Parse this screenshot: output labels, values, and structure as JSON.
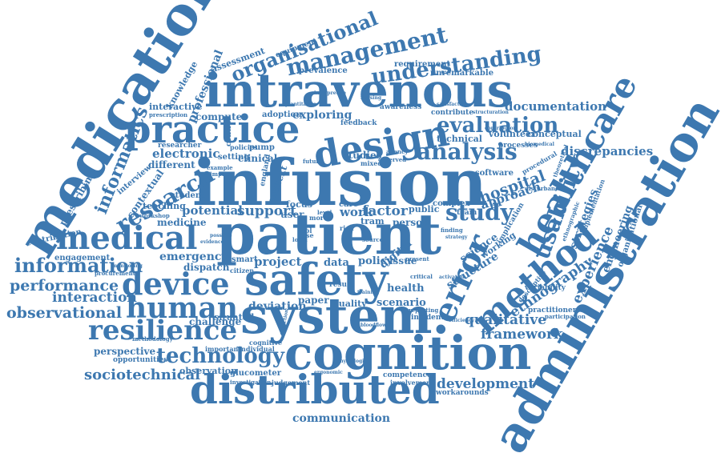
{
  "cloud": {
    "color": "#3d78b0",
    "words": {
      "medication": "medication",
      "intravenous": "intravenous",
      "infusion": "infusion",
      "patient": "patient",
      "safety": "safety",
      "system": "system.",
      "cognition": "cognition",
      "distributed": "distributed",
      "administration": "administration",
      "practice": "practice",
      "design": "design",
      "management": "management",
      "organisational": "organisational",
      "understanding": "understanding",
      "healthcare": "healthcare",
      "method": "method",
      "error": "error",
      "medical": "medical",
      "device": "device",
      "human": "human",
      "resilience": "resilience",
      "technology": "technology",
      "information": "information",
      "performance": "performance",
      "observational": "observational",
      "interaction": "interaction",
      "sociotechnical": "sociotechnical",
      "research": "research",
      "informatics": "informatics",
      "evaluation": "evaluation",
      "analysis": "analysis",
      "study": "study",
      "usability": "usability",
      "documentation": "documentation",
      "discrepancies": "discrepancies",
      "development": "development",
      "framework": "framework",
      "communication": "communication",
      "qualitative": "qualitative",
      "experience": "experience",
      "ethnography": "ethnography",
      "strategies": "strategies",
      "engineering": "engineering",
      "organizational": "organizational",
      "hospital": "hospital",
      "approach": "approach",
      "professional": "professional",
      "knowledge": "knowledge",
      "assessment": "assessment",
      "equipment": "equipment",
      "prevalence": "prevalence",
      "requirement": "requirement",
      "unremarkable": "unremarkable",
      "interactive": "interactive",
      "computer": "computer",
      "electronic": "electronic",
      "different": "different",
      "researcher": "researcher",
      "prescribing": "prescribing",
      "contextual": "contextual",
      "interview": "interview",
      "teaching": "teaching",
      "student": "student",
      "contribution": "contribution",
      "engagement": "engagement",
      "emergency": "emergency",
      "dispatch": "dispatch",
      "potential": "potential",
      "support": "support",
      "medicine": "medicine",
      "exploring": "exploring",
      "studies": "studies",
      "adoption": "adoption",
      "setting": "setting",
      "clinical": "clinical",
      "pump": "pump",
      "technical": "technical",
      "volunteer": "volunteer",
      "conceptual": "conceptual",
      "processes": "processes",
      "contribute": "contribute",
      "awareness": "awareness",
      "feedback": "feedback",
      "policies": "policies",
      "control": "control",
      "factor": "factor",
      "work": "work",
      "person": "person",
      "digital": "digital",
      "policy": "policy",
      "issue": "issue",
      "data": "data",
      "project": "project",
      "smart": "smart",
      "context": "context",
      "user": "user",
      "focus": "focus",
      "care": "care",
      "public": "public",
      "tram": "tram",
      "complex": "complex",
      "structure": "structure",
      "science": "science",
      "working": "working",
      "implication": "implication",
      "deviation": "deviation",
      "paper": "paper",
      "quality": "quality",
      "scenario": "scenario",
      "health": "health",
      "result": "result",
      "incident": "incident",
      "challenge": "challenge",
      "situated": "situated",
      "perspective": "perspective",
      "opportunities": "opportunities",
      "observation": "observation",
      "glucometer": "glucometer",
      "investigation": "investigation",
      "judgement": "judgement",
      "competence": "competence",
      "involvement": "involvement",
      "workarounds": "workarounds",
      "important": "important",
      "individual": "individual",
      "cognitive": "cognitive",
      "england": "england",
      "software": "software",
      "procedural": "procedural",
      "variability": "variability",
      "descriptive": "descriptive",
      "practitioner": "practitioner",
      "participation": "participation",
      "team": "team",
      "finding": "finding",
      "reporting": "reporting",
      "critical": "critical",
      "present": "present",
      "source": "source",
      "level": "level",
      "local": "local",
      "more": "more",
      "tool": "tool",
      "case": "case",
      "risk": "risk",
      "procurement": "procurement",
      "methodology": "methodology",
      "satisfaction": "satisfaction",
      "structuration": "structuration",
      "theoretical": "theoretical",
      "ethnographic": "ethnographic",
      "implementation": "implementation",
      "disturbance": "disturbance",
      "agency": "agency",
      "observed": "observed",
      "mixed": "mixed",
      "future": "future",
      "example": "example",
      "impact": "impact",
      "possible": "possible",
      "evidence": "evidence",
      "monitoring": "monitoring",
      "workshop": "workshop",
      "citizen": "citizen",
      "ergonomic": "ergonomic",
      "training": "training",
      "activation": "activation",
      "strategy": "strategy",
      "physiologic": "physiologic",
      "bloodflow": "bloodflow",
      "efficiency": "efficiency",
      "induction": "induction",
      "contributor": "contributor",
      "biomedical": "biomedical",
      "nursing": "nursing",
      "quantitative": "quantitative",
      "interpretive": "interpretive",
      "prescription": "prescription"
    }
  }
}
